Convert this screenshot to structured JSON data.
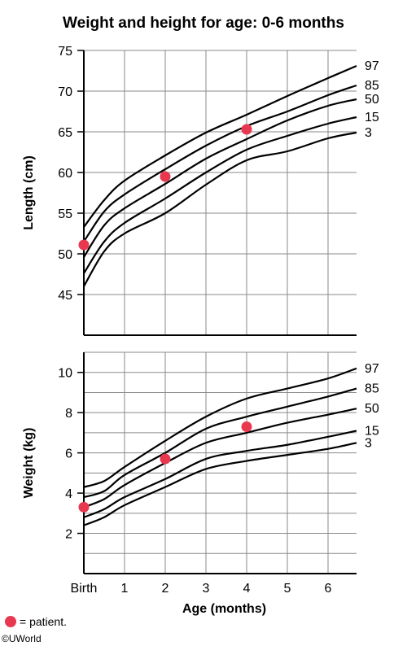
{
  "title": "Weight and height for age: 0-6 months",
  "colors": {
    "patient": "#e8384f",
    "curve": "#000000",
    "grid": "#8a8a8a"
  },
  "legend": {
    "label": "= patient."
  },
  "copyright": "©UWorld",
  "chart_data": [
    {
      "type": "line",
      "ylabel": "Length (cm)",
      "ylim": [
        40,
        75
      ],
      "xlim": [
        0,
        6.7
      ],
      "yticks": [
        "45",
        "50",
        "55",
        "60",
        "65",
        "70",
        "75"
      ],
      "x": [
        0,
        0.5,
        1,
        2,
        3,
        4,
        5,
        6,
        6.7
      ],
      "series": [
        {
          "name": "3",
          "values": [
            46.0,
            50.3,
            52.5,
            55.0,
            58.5,
            61.5,
            62.6,
            64.2,
            64.9
          ]
        },
        {
          "name": "15",
          "values": [
            47.6,
            51.5,
            53.8,
            56.8,
            60.0,
            62.8,
            64.5,
            66.0,
            66.8
          ]
        },
        {
          "name": "50",
          "values": [
            49.6,
            53.5,
            55.6,
            58.6,
            61.7,
            64.1,
            66.4,
            68.2,
            69.0
          ]
        },
        {
          "name": "85",
          "values": [
            51.5,
            55.2,
            57.3,
            60.4,
            63.3,
            65.7,
            67.5,
            69.5,
            70.7
          ]
        },
        {
          "name": "97",
          "values": [
            53.3,
            56.6,
            59.0,
            62.1,
            64.9,
            67.1,
            69.4,
            71.6,
            73.1
          ]
        }
      ],
      "patient": [
        {
          "x": 0,
          "y": 51.1
        },
        {
          "x": 2,
          "y": 59.5
        },
        {
          "x": 4,
          "y": 65.3
        }
      ]
    },
    {
      "type": "line",
      "ylabel": "Weight (kg)",
      "ylim": [
        0,
        11
      ],
      "xlim": [
        0,
        6.7
      ],
      "yticks": [
        "2",
        "4",
        "6",
        "8",
        "10"
      ],
      "xlabel": "Age (months)",
      "xticks": [
        "Birth",
        "1",
        "2",
        "3",
        "4",
        "5",
        "6"
      ],
      "x": [
        0,
        0.5,
        1,
        2,
        3,
        4,
        5,
        6,
        6.7
      ],
      "series": [
        {
          "name": "3",
          "values": [
            2.4,
            2.8,
            3.4,
            4.3,
            5.2,
            5.6,
            5.9,
            6.2,
            6.5
          ]
        },
        {
          "name": "15",
          "values": [
            2.8,
            3.2,
            3.8,
            4.7,
            5.7,
            6.1,
            6.4,
            6.8,
            7.1
          ]
        },
        {
          "name": "50",
          "values": [
            3.3,
            3.7,
            4.4,
            5.5,
            6.5,
            7.0,
            7.5,
            7.9,
            8.2
          ]
        },
        {
          "name": "85",
          "values": [
            3.8,
            4.1,
            4.9,
            6.0,
            7.2,
            7.8,
            8.3,
            8.8,
            9.2
          ]
        },
        {
          "name": "97",
          "values": [
            4.3,
            4.6,
            5.3,
            6.6,
            7.8,
            8.7,
            9.2,
            9.7,
            10.2
          ]
        }
      ],
      "patient": [
        {
          "x": 0,
          "y": 3.3
        },
        {
          "x": 2,
          "y": 5.7
        },
        {
          "x": 4,
          "y": 7.3
        }
      ]
    }
  ]
}
